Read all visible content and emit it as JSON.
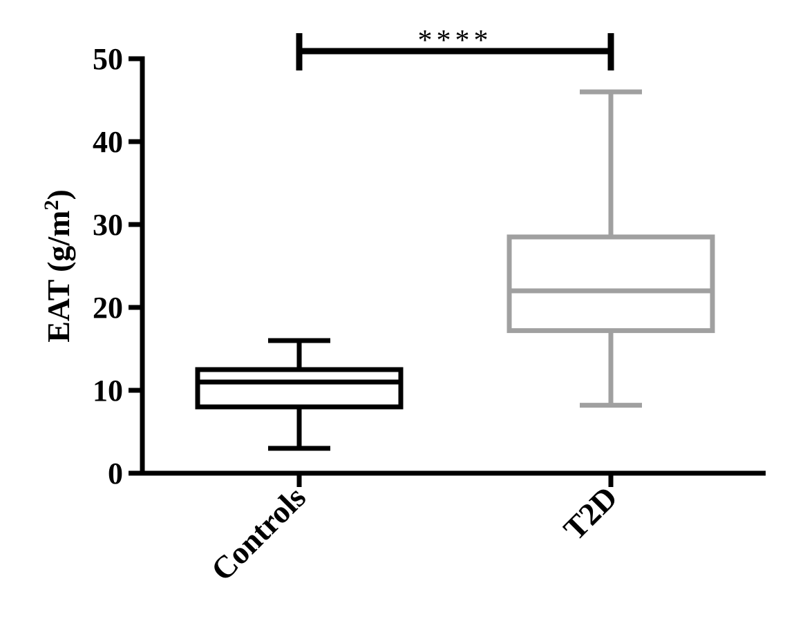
{
  "chart_data": {
    "type": "box",
    "ylabel": {
      "text": "EAT (g/m",
      "sup": "2",
      "suffix": ")"
    },
    "ylim": [
      0,
      50
    ],
    "yticks": [
      "0",
      "10",
      "20",
      "30",
      "40",
      "50"
    ],
    "categories": [
      "Controls",
      "T2D"
    ],
    "series": [
      {
        "category": "Controls",
        "whisker_low": 3,
        "q1": 8,
        "median": 11,
        "q3": 12.5,
        "whisker_high": 16,
        "color": "#000000"
      },
      {
        "category": "T2D",
        "whisker_low": 8.2,
        "q1": 17.2,
        "median": 22,
        "q3": 28.5,
        "whisker_high": 46,
        "color": "#a0a0a0"
      }
    ],
    "significance": {
      "label": "****",
      "from": "Controls",
      "to": "T2D",
      "y": 51
    },
    "grid": false
  }
}
